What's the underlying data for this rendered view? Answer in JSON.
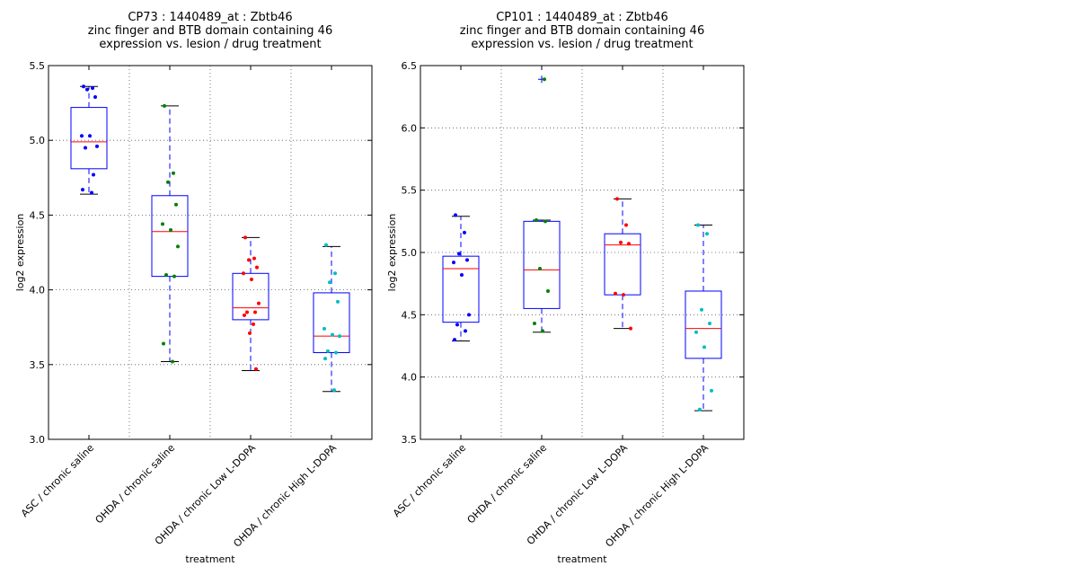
{
  "chart_data": [
    {
      "type": "boxplot",
      "title": [
        "CP73 : 1440489_at : Zbtb46",
        "zinc finger and BTB domain containing 46",
        "expression vs. lesion / drug treatment"
      ],
      "xlabel": "treatment",
      "ylabel": "log2 expression",
      "ylim": [
        3.0,
        5.5
      ],
      "yticks": [
        3.0,
        3.5,
        4.0,
        4.5,
        5.0,
        5.5
      ],
      "ytick_labels": [
        "3.0",
        "3.5",
        "4.0",
        "4.5",
        "5.0",
        "5.5"
      ],
      "grid": true,
      "categories": [
        "ASC / chronic saline",
        "OHDA / chronic saline",
        "OHDA / chronic Low L-DOPA",
        "OHDA / chronic High L-DOPA"
      ],
      "colors": [
        "#0000ff",
        "#008000",
        "#ff0000",
        "#00bfbf"
      ],
      "boxes": [
        {
          "whisker_low": 4.64,
          "q1": 4.81,
          "median": 4.99,
          "q3": 5.22,
          "whisker_high": 5.36,
          "points": [
            5.36,
            5.35,
            5.34,
            5.29,
            5.03,
            5.03,
            4.96,
            4.95,
            4.77,
            4.67,
            4.65
          ]
        },
        {
          "whisker_low": 3.52,
          "q1": 4.09,
          "median": 4.39,
          "q3": 4.63,
          "whisker_high": 5.23,
          "points": [
            5.23,
            4.78,
            4.72,
            4.57,
            4.44,
            4.4,
            4.29,
            4.1,
            4.09,
            3.64,
            3.52
          ]
        },
        {
          "whisker_low": 3.46,
          "q1": 3.8,
          "median": 3.88,
          "q3": 4.11,
          "whisker_high": 4.35,
          "points": [
            4.35,
            4.21,
            4.2,
            4.15,
            4.11,
            4.07,
            3.91,
            3.85,
            3.85,
            3.83,
            3.77,
            3.71,
            3.47
          ]
        },
        {
          "whisker_low": 3.32,
          "q1": 3.58,
          "median": 3.69,
          "q3": 3.98,
          "whisker_high": 4.29,
          "points": [
            4.3,
            4.11,
            4.05,
            3.92,
            3.74,
            3.7,
            3.69,
            3.59,
            3.58,
            3.54,
            3.33
          ]
        }
      ]
    },
    {
      "type": "boxplot",
      "title": [
        "CP101 : 1440489_at : Zbtb46",
        "zinc finger and BTB domain containing 46",
        "expression vs. lesion / drug treatment"
      ],
      "xlabel": "treatment",
      "ylabel": "log2 expression",
      "ylim": [
        3.5,
        6.5
      ],
      "yticks": [
        3.5,
        4.0,
        4.5,
        5.0,
        5.5,
        6.0,
        6.5
      ],
      "ytick_labels": [
        "3.5",
        "4.0",
        "4.5",
        "5.0",
        "5.5",
        "6.0",
        "6.5"
      ],
      "grid": true,
      "categories": [
        "ASC / chronic saline",
        "OHDA / chronic saline",
        "OHDA / chronic Low L-DOPA",
        "OHDA / chronic High L-DOPA"
      ],
      "colors": [
        "#0000ff",
        "#008000",
        "#ff0000",
        "#00bfbf"
      ],
      "boxes": [
        {
          "whisker_low": 4.29,
          "q1": 4.44,
          "median": 4.87,
          "q3": 4.97,
          "whisker_high": 5.29,
          "points": [
            5.3,
            5.16,
            4.99,
            4.94,
            4.92,
            4.82,
            4.5,
            4.42,
            4.37,
            4.3
          ]
        },
        {
          "whisker_low": 4.36,
          "q1": 4.55,
          "median": 4.86,
          "q3": 5.25,
          "whisker_high": 5.26,
          "points": [
            5.26,
            5.25,
            4.87,
            4.69,
            4.43,
            4.37
          ],
          "outliers": [
            6.39
          ]
        },
        {
          "whisker_low": 4.39,
          "q1": 4.66,
          "median": 5.06,
          "q3": 5.15,
          "whisker_high": 5.43,
          "points": [
            5.43,
            5.22,
            5.08,
            5.07,
            4.67,
            4.66,
            4.39
          ]
        },
        {
          "whisker_low": 3.73,
          "q1": 4.15,
          "median": 4.39,
          "q3": 4.69,
          "whisker_high": 5.22,
          "points": [
            5.22,
            5.15,
            4.54,
            4.43,
            4.36,
            4.24,
            3.89,
            3.74
          ]
        }
      ]
    }
  ]
}
